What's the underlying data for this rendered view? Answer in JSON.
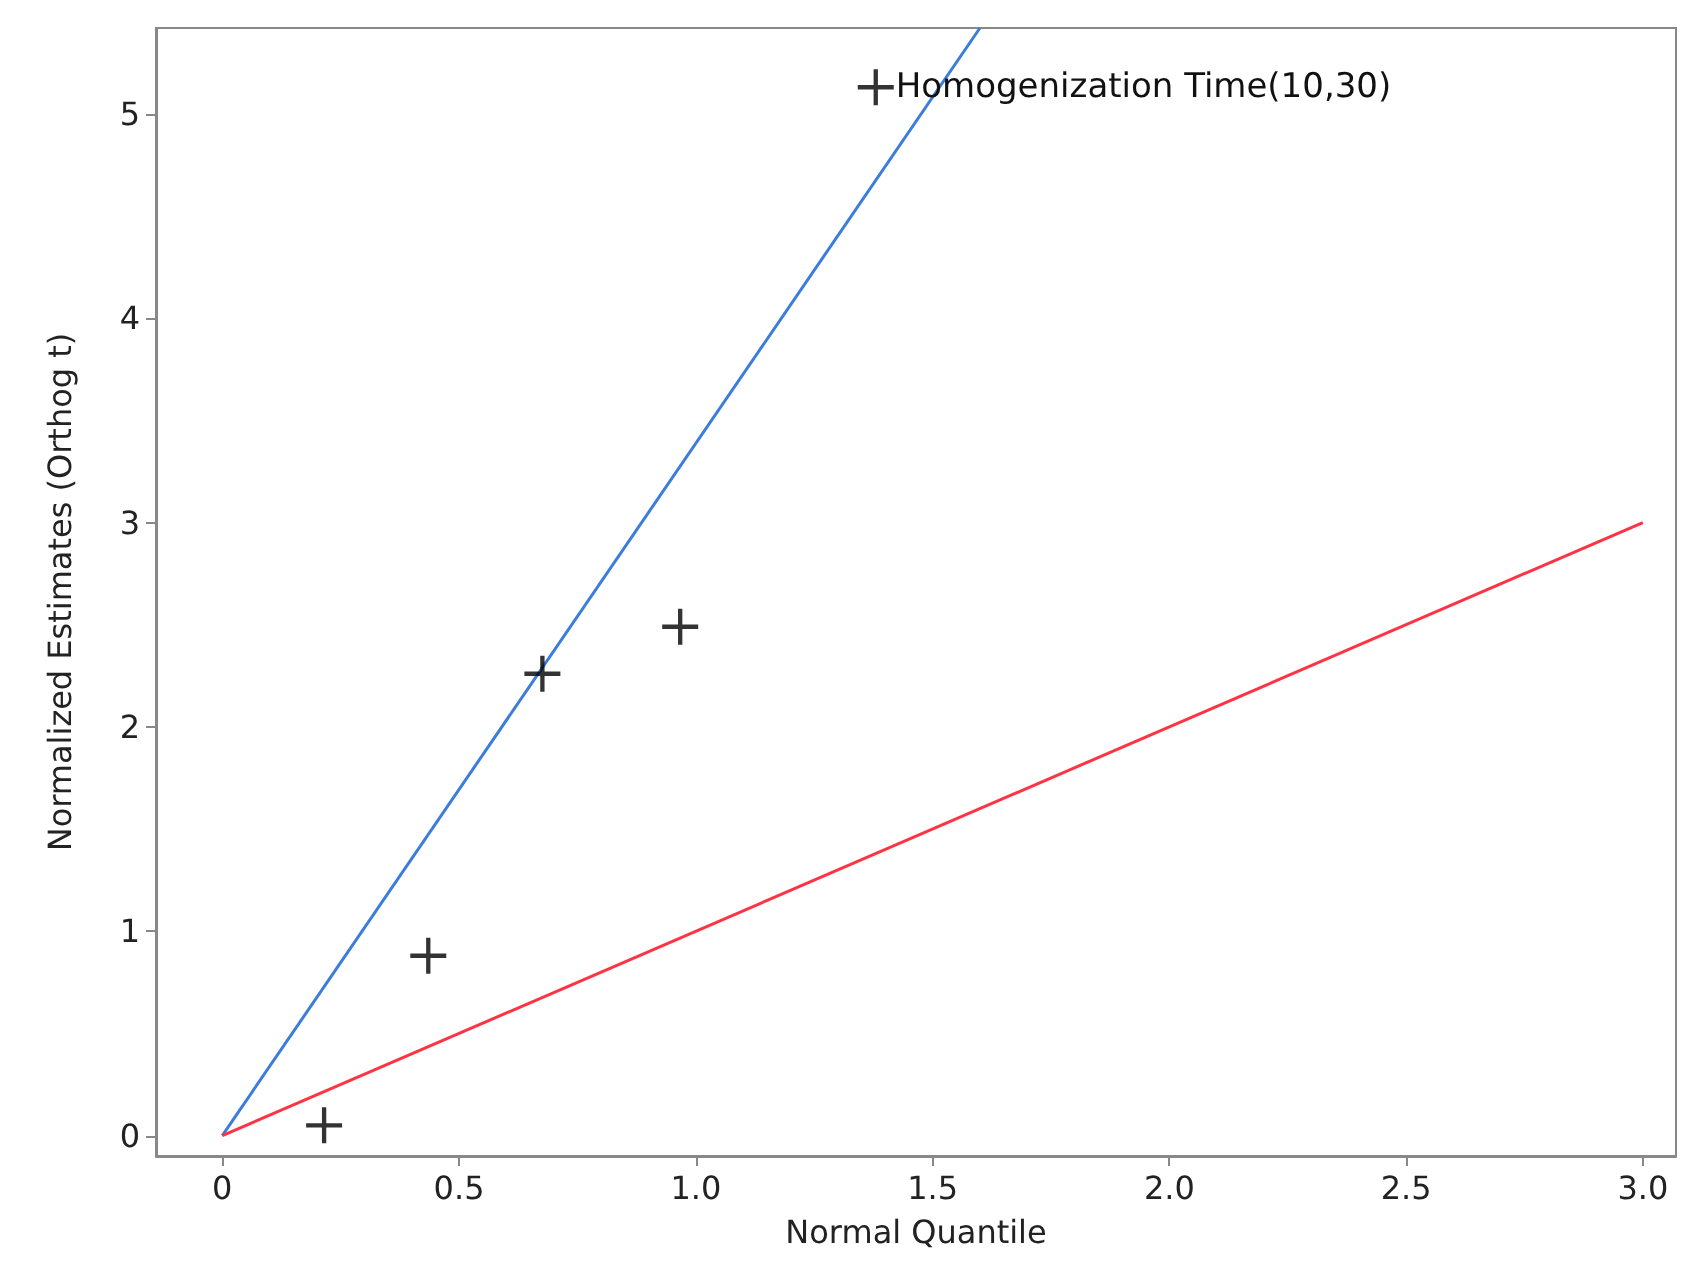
{
  "chart_data": {
    "type": "scatter",
    "xlabel": "Normal Quantile",
    "ylabel": "Normalized Estimates (Orthog t)",
    "series": [
      {
        "color": "#000000",
        "x": [
          0.215,
          0.435,
          0.676,
          0.967,
          1.38
        ],
        "values": [
          0.05,
          0.88,
          2.26,
          2.49,
          5.13
        ]
      },
      {
        "type": "line",
        "color": "#3b7ddd",
        "x": [
          0,
          1.6
        ],
        "values": [
          0,
          5.42
        ],
        "marker": "none"
      },
      {
        "type": "line",
        "color": "#ff3344",
        "x": [
          0,
          3
        ],
        "values": [
          0,
          3
        ],
        "marker": "none"
      }
    ],
    "annotations": [
      {
        "text": "Homogenization Time(10,30)",
        "x": 1.38,
        "y": 5.13
      }
    ],
    "xlim": [
      -0.14,
      3.07
    ],
    "ylim": [
      -0.1,
      5.42
    ],
    "xticks": [
      0,
      {
        "value": 0.5,
        "label": "0.5"
      },
      {
        "value": 1,
        "label": "1.0"
      },
      {
        "value": 1.5,
        "label": "1.5"
      },
      {
        "value": 2,
        "label": "2.0"
      },
      {
        "value": 2.5,
        "label": "2.5"
      },
      {
        "value": 3,
        "label": "3.0"
      }
    ],
    "yticks": [
      0,
      1,
      2,
      3,
      4,
      5
    ],
    "marker": "cross"
  }
}
